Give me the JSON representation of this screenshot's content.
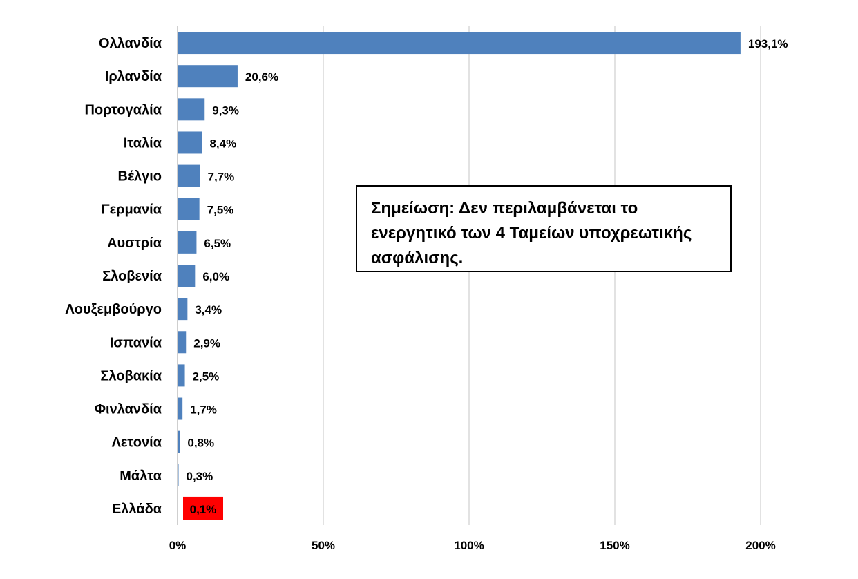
{
  "chart_data": {
    "type": "bar",
    "orientation": "horizontal",
    "categories": [
      "Ολλανδία",
      "Ιρλανδία",
      "Πορτογαλία",
      "Ιταλία",
      "Βέλγιο",
      "Γερμανία",
      "Αυστρία",
      "Σλοβενία",
      "Λουξεμβούργο",
      "Ισπανία",
      "Σλοβακία",
      "Φινλανδία",
      "Λετονία",
      "Μάλτα",
      "Ελλάδα"
    ],
    "values": [
      193.1,
      20.6,
      9.3,
      8.4,
      7.7,
      7.5,
      6.5,
      6.0,
      3.4,
      2.9,
      2.5,
      1.7,
      0.8,
      0.3,
      0.1
    ],
    "value_labels": [
      "193,1%",
      "20,6%",
      "9,3%",
      "8,4%",
      "7,7%",
      "7,5%",
      "6,5%",
      "6,0%",
      "3,4%",
      "2,9%",
      "2,5%",
      "1,7%",
      "0,8%",
      "0,3%",
      "0,1%"
    ],
    "highlight": {
      "category": "Ελλάδα",
      "color": "#ff0000"
    },
    "bar_color": "#4f81bd",
    "xlim": [
      0,
      200
    ],
    "xticks": [
      0,
      50,
      100,
      150,
      200
    ],
    "xtick_labels": [
      "0%",
      "50%",
      "100%",
      "150%",
      "200%"
    ],
    "grid": true
  },
  "note": {
    "lines": [
      "Σημείωση: Δεν περιλαμβάνεται το",
      "ενεργητικό των 4 Ταμείων υποχρεωτικής",
      "ασφάλισης."
    ]
  }
}
